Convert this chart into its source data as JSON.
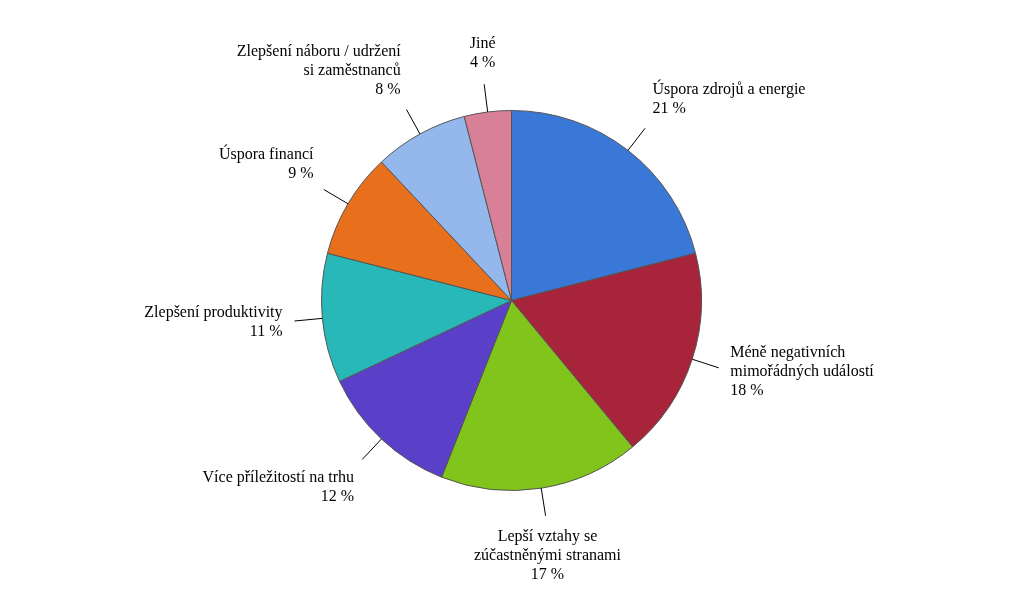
{
  "chart_data": {
    "type": "pie",
    "categories": [
      "Úspora zdrojů a energie",
      "Méně negativních mimořádných událostí",
      "Lepší vztahy se zúčastněnými stranami",
      "Více příležitostí na trhu",
      "Zlepšení produktivity",
      "Úspora financí",
      "Zlepšení náboru / udržení si zaměstnanců",
      "Jiné"
    ],
    "values": [
      21,
      18,
      17,
      12,
      11,
      9,
      8,
      4
    ],
    "value_labels": [
      "21 %",
      "18 %",
      "17 %",
      "12 %",
      "11 %",
      "9 %",
      "8 %",
      "4 %"
    ],
    "colors": [
      "#3a78d8",
      "#a8243a",
      "#80c41c",
      "#5a40c8",
      "#28b8b8",
      "#e8701c",
      "#94b8ec",
      "#d88098"
    ],
    "legend": false
  }
}
